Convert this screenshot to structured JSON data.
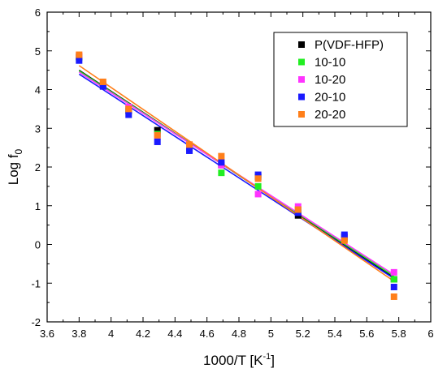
{
  "chart_data": {
    "type": "scatter",
    "xlabel": {
      "main": "1000/T [K",
      "sup": "-1",
      "close": "]"
    },
    "ylabel": {
      "main": "Log f",
      "sub": "0"
    },
    "xlim": [
      3.6,
      6
    ],
    "ylim": [
      -2,
      6
    ],
    "xticks": [
      "3.6",
      "3.8",
      "4",
      "4.2",
      "4.4",
      "4.6",
      "4.8",
      "5",
      "5.2",
      "5.4",
      "5.6",
      "5.8",
      "6"
    ],
    "yticks": [
      "-2",
      "-1",
      "0",
      "1",
      "2",
      "3",
      "4",
      "5",
      "6"
    ],
    "grid": false,
    "legend_position": "top-right",
    "series": [
      {
        "name": "P(VDF-HFP)",
        "color": "#000000",
        "x": [
          3.8,
          3.95,
          4.11,
          4.29,
          4.49,
          4.69,
          4.92,
          5.17,
          5.46,
          5.77
        ],
        "y": [
          4.85,
          4.1,
          3.45,
          2.95,
          2.5,
          2.05,
          1.75,
          0.75,
          0.2,
          -0.9
        ],
        "fit": [
          [
            3.8,
            4.5
          ],
          [
            5.77,
            -0.85
          ]
        ]
      },
      {
        "name": "10-10",
        "color": "#22ee22",
        "x": [
          3.8,
          3.95,
          4.11,
          4.29,
          4.49,
          4.69,
          4.92,
          5.17,
          5.46,
          5.77
        ],
        "y": [
          4.82,
          4.12,
          3.5,
          2.85,
          2.5,
          1.85,
          1.5,
          0.9,
          0.15,
          -0.9
        ],
        "fit": [
          [
            3.8,
            4.48
          ],
          [
            5.77,
            -0.82
          ]
        ]
      },
      {
        "name": "10-20",
        "color": "#ff33ff",
        "x": [
          3.8,
          3.95,
          4.11,
          4.29,
          4.49,
          4.69,
          4.92,
          5.17,
          5.46,
          5.77
        ],
        "y": [
          4.88,
          4.13,
          3.55,
          2.8,
          2.55,
          2.05,
          1.3,
          0.98,
          0.2,
          -0.72
        ],
        "fit": [
          [
            3.8,
            4.45
          ],
          [
            5.77,
            -0.78
          ]
        ]
      },
      {
        "name": "20-10",
        "color": "#1a1aff",
        "x": [
          3.8,
          3.95,
          4.11,
          4.29,
          4.49,
          4.69,
          4.92,
          5.17,
          5.46,
          5.77
        ],
        "y": [
          4.75,
          4.08,
          3.35,
          2.65,
          2.42,
          2.12,
          1.8,
          0.82,
          0.25,
          -1.1
        ],
        "fit": [
          [
            3.8,
            4.4
          ],
          [
            5.77,
            -0.88
          ]
        ]
      },
      {
        "name": "20-20",
        "color": "#ff7f1a",
        "x": [
          3.8,
          3.95,
          4.11,
          4.29,
          4.49,
          4.69,
          4.92,
          5.17,
          5.46,
          5.77
        ],
        "y": [
          4.9,
          4.2,
          3.5,
          2.82,
          2.58,
          2.28,
          1.7,
          0.9,
          0.1,
          -1.35
        ],
        "fit": [
          [
            3.8,
            4.62
          ],
          [
            5.77,
            -0.95
          ]
        ]
      }
    ]
  }
}
